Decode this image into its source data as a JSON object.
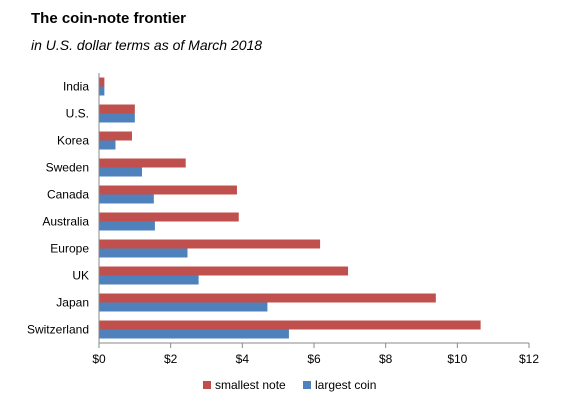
{
  "chart_data": {
    "type": "bar",
    "orientation": "horizontal",
    "title": "The coin-note frontier",
    "subtitle": "in U.S. dollar terms as of March 2018",
    "categories": [
      "India",
      "U.S.",
      "Korea",
      "Sweden",
      "Canada",
      "Australia",
      "Europe",
      "UK",
      "Japan",
      "Switzerland"
    ],
    "series": [
      {
        "name": "smallest note",
        "color": "#c0504d",
        "values": [
          0.15,
          1,
          0.92,
          2.42,
          3.85,
          3.9,
          6.17,
          6.95,
          9.4,
          10.65
        ]
      },
      {
        "name": "largest coin",
        "color": "#4f81bd",
        "values": [
          0.15,
          1,
          0.46,
          1.2,
          1.53,
          1.56,
          2.47,
          2.78,
          4.7,
          5.3
        ]
      }
    ],
    "xlim": [
      0,
      12
    ],
    "xticks": [
      "$0",
      "$2",
      "$4",
      "$6",
      "$8",
      "$10",
      "$12"
    ],
    "grid": false,
    "legend_position": "bottom"
  }
}
